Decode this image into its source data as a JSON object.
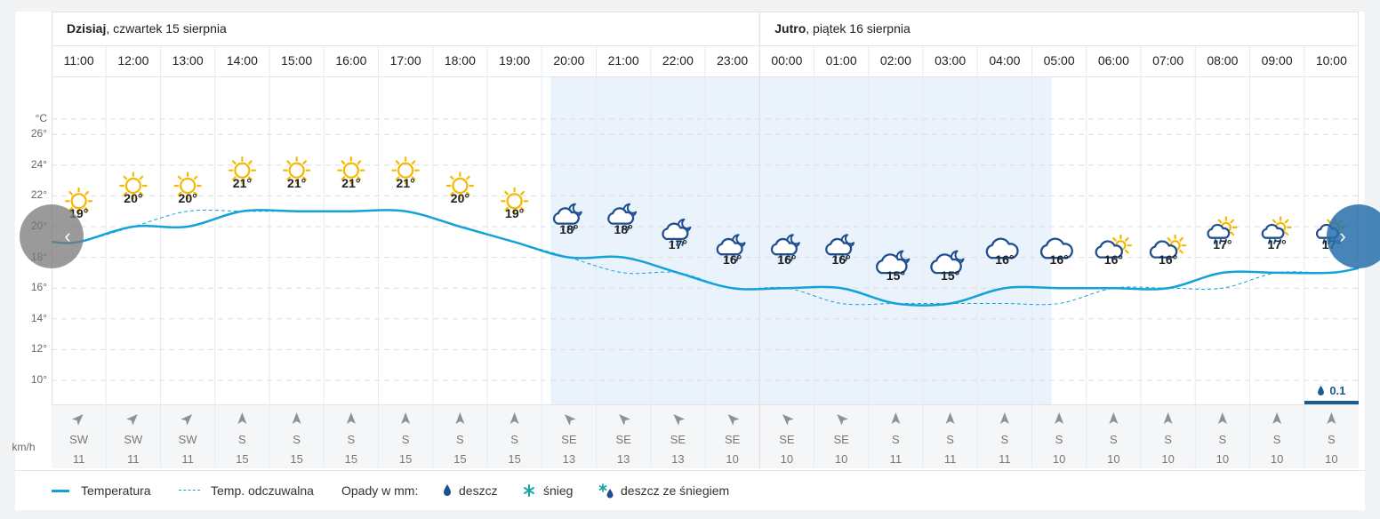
{
  "colors": {
    "temperature_line": "#14a3d8",
    "feels_like_line": "#14a3d8",
    "night_band": "#eaf2fb",
    "sun": "#f5b800",
    "icon_blue": "#1f4f8f",
    "precip": "#1a5c8f"
  },
  "days": [
    {
      "bold": "Dzisiaj",
      "rest": ", czwartek 15 sierpnia"
    },
    {
      "bold": "Jutro",
      "rest": ", piątek 16 sierpnia"
    }
  ],
  "y_axis": {
    "unit": "°C",
    "ticks": [
      "26°",
      "24°",
      "22°",
      "20°",
      "18°",
      "16°",
      "14°",
      "12°",
      "10°"
    ]
  },
  "wind_unit": "km/h",
  "chart_data": {
    "type": "line",
    "x": [
      "11:00",
      "12:00",
      "13:00",
      "14:00",
      "15:00",
      "16:00",
      "17:00",
      "18:00",
      "19:00",
      "20:00",
      "21:00",
      "22:00",
      "23:00",
      "00:00",
      "01:00",
      "02:00",
      "03:00",
      "04:00",
      "05:00",
      "06:00",
      "07:00",
      "08:00",
      "09:00",
      "10:00"
    ],
    "series": [
      {
        "name": "Temperatura",
        "values": [
          19,
          20,
          20,
          21,
          21,
          21,
          21,
          20,
          19,
          18,
          18,
          17,
          16,
          16,
          16,
          15,
          15,
          16,
          16,
          16,
          16,
          17,
          17,
          17
        ]
      },
      {
        "name": "Temp. odczuwalna",
        "values": [
          19,
          20,
          21,
          21,
          21,
          21,
          21,
          20,
          19,
          18,
          17,
          17,
          16,
          16,
          15,
          15,
          15,
          15,
          15,
          16,
          16,
          16,
          17,
          17
        ]
      }
    ],
    "temperature_labels": [
      "19°",
      "20°",
      "20°",
      "21°",
      "21°",
      "21°",
      "21°",
      "20°",
      "19°",
      "18°",
      "18°",
      "17°",
      "16°",
      "16°",
      "16°",
      "15°",
      "15°",
      "16°",
      "16°",
      "16°",
      "16°",
      "17°",
      "17°",
      "17°"
    ],
    "weather_icons": [
      "sun-icon",
      "sun-icon",
      "sun-icon",
      "sun-icon",
      "sun-icon",
      "sun-icon",
      "sun-icon",
      "sun-icon",
      "sun-icon",
      "night-rain-icon",
      "night-rain-icon",
      "night-rain-icon",
      "night-rain-icon",
      "night-rain-icon",
      "night-rain-icon",
      "night-cloud-icon",
      "night-cloud-icon",
      "cloud-icon",
      "cloud-icon",
      "sun-cloud-icon",
      "sun-cloud-icon",
      "sun-rain-icon",
      "sun-rain-icon",
      "sun-rain-icon"
    ],
    "ylim": [
      9,
      28
    ],
    "night_range": [
      "20:00",
      "05:00"
    ],
    "grid": true,
    "wind": {
      "directions": [
        "SW",
        "SW",
        "SW",
        "S",
        "S",
        "S",
        "S",
        "S",
        "S",
        "SE",
        "SE",
        "SE",
        "SE",
        "SE",
        "SE",
        "S",
        "S",
        "S",
        "S",
        "S",
        "S",
        "S",
        "S",
        "S"
      ],
      "speeds": [
        "11",
        "11",
        "11",
        "15",
        "15",
        "15",
        "15",
        "15",
        "15",
        "13",
        "13",
        "13",
        "10",
        "10",
        "10",
        "11",
        "11",
        "11",
        "10",
        "10",
        "10",
        "10",
        "10",
        "10"
      ]
    },
    "precipitation": [
      {
        "hour": "10:00",
        "value": "0.1",
        "type": "deszcz"
      }
    ]
  },
  "legend": {
    "temperature": "Temperatura",
    "feels_like": "Temp. odczuwalna",
    "precip_title": "Opady w mm:",
    "rain": "deszcz",
    "snow": "śnieg",
    "sleet": "deszcz ze śniegiem"
  },
  "nav": {
    "prev": "‹",
    "next": "›"
  }
}
